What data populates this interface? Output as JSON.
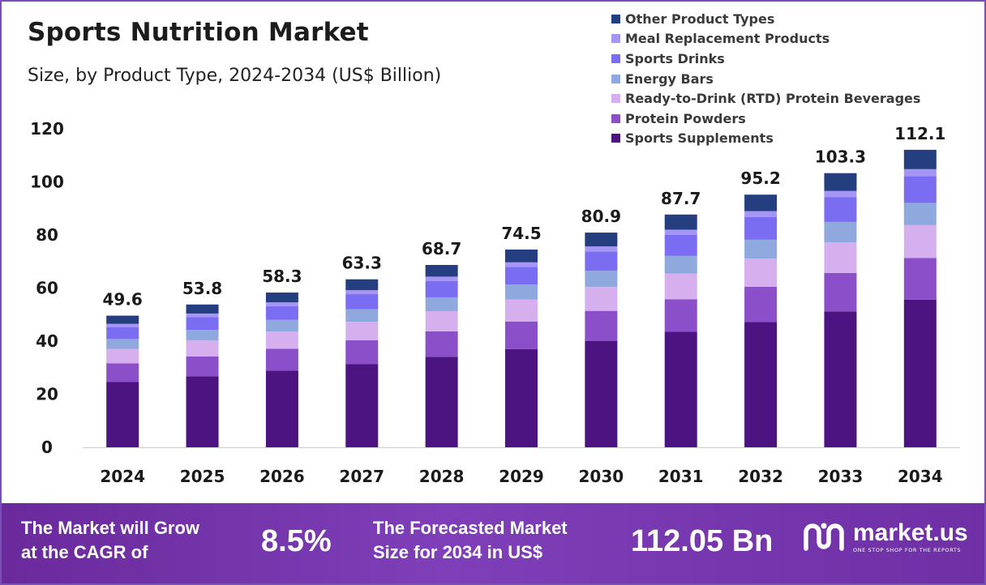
{
  "colors": {
    "Sports Supplements": "#4b1480",
    "Protein Powders": "#8a4fc9",
    "Ready-to-Drink (RTD) Protein Beverages": "#d6b0ee",
    "Energy Bars": "#8fa8de",
    "Sports Drinks": "#7b6df2",
    "Meal Replacement Products": "#a596f6",
    "Other Product Types": "#243e80",
    "banner": "#7a3bb5"
  },
  "chart_data": {
    "type": "bar",
    "stacked": true,
    "title": "Sports Nutrition Market",
    "subtitle": "Size, by Product Type, 2024-2034 (US$ Billion)",
    "categories": [
      "2024",
      "2025",
      "2026",
      "2027",
      "2028",
      "2029",
      "2030",
      "2031",
      "2032",
      "2033",
      "2034"
    ],
    "totals": [
      "49.6",
      "53.8",
      "58.3",
      "63.3",
      "68.7",
      "74.5",
      "80.9",
      "87.7",
      "95.2",
      "103.3",
      "112.1"
    ],
    "ylim": [
      0,
      120
    ],
    "yticks": [
      "0",
      "20",
      "40",
      "60",
      "80",
      "100",
      "120"
    ],
    "grid": false,
    "legend_position": "top-right",
    "series": [
      {
        "name": "Sports Supplements",
        "values": [
          24.6,
          26.7,
          28.9,
          31.4,
          34.1,
          37.0,
          40.1,
          43.5,
          47.2,
          51.2,
          55.6
        ]
      },
      {
        "name": "Protein Powders",
        "values": [
          7.0,
          7.5,
          8.2,
          8.9,
          9.6,
          10.4,
          11.3,
          12.3,
          13.3,
          14.5,
          15.7
        ]
      },
      {
        "name": "Ready-to-Drink (RTD) Protein Beverages",
        "values": [
          5.5,
          6.0,
          6.5,
          7.0,
          7.6,
          8.3,
          9.0,
          9.7,
          10.6,
          11.5,
          12.4
        ]
      },
      {
        "name": "Energy Bars",
        "values": [
          3.7,
          4.0,
          4.4,
          4.7,
          5.2,
          5.6,
          6.1,
          6.6,
          7.1,
          7.7,
          8.4
        ]
      },
      {
        "name": "Sports Drinks",
        "values": [
          4.5,
          4.9,
          5.2,
          5.7,
          6.2,
          6.7,
          7.3,
          7.9,
          8.6,
          9.3,
          10.1
        ]
      },
      {
        "name": "Meal Replacement Products",
        "values": [
          1.2,
          1.3,
          1.4,
          1.5,
          1.6,
          1.7,
          1.9,
          2.0,
          2.2,
          2.4,
          2.6
        ]
      },
      {
        "name": "Other Product Types",
        "values": [
          3.1,
          3.4,
          3.7,
          4.1,
          4.4,
          4.8,
          5.2,
          5.7,
          6.2,
          6.7,
          7.3
        ]
      }
    ]
  },
  "legend_order": [
    "Other Product Types",
    "Meal Replacement Products",
    "Sports Drinks",
    "Energy Bars",
    "Ready-to-Drink (RTD) Protein Beverages",
    "Protein Powders",
    "Sports Supplements"
  ],
  "banner": {
    "cagr_text_1": "The Market will Grow",
    "cagr_text_2": "at the CAGR of",
    "cagr_value": "8.5%",
    "forecast_text_1": "The Forecasted Market",
    "forecast_text_2": "Size for 2034 in US$",
    "forecast_value": "112.05 Bn",
    "logo_name": "market.us",
    "logo_tagline": "ONE STOP SHOP FOR THE REPORTS"
  }
}
